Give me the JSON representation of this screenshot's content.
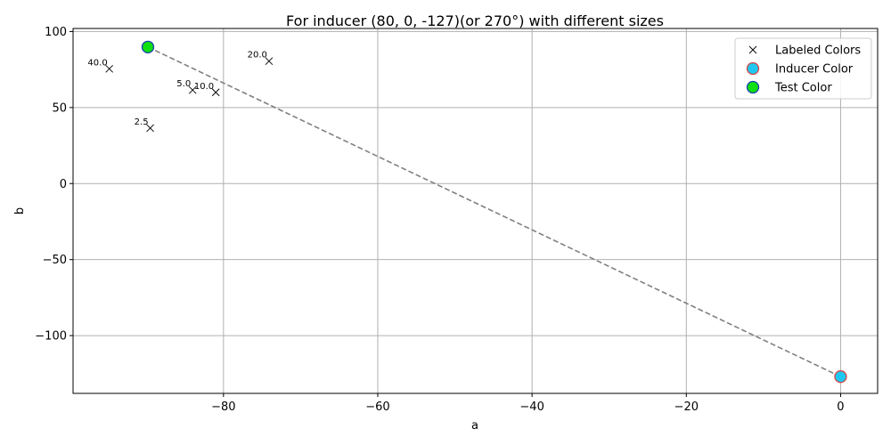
{
  "chart_data": {
    "type": "scatter",
    "title": "For inducer (80, 0, -127)(or 270°) with different sizes",
    "xlabel": "a",
    "ylabel": "b",
    "xlim": [
      -99.5,
      4.8
    ],
    "ylim": [
      -138,
      102
    ],
    "xticks": [
      -80,
      -60,
      -40,
      -20,
      0
    ],
    "yticks": [
      -100,
      -50,
      0,
      50,
      100
    ],
    "xtick_labels": [
      "−80",
      "−60",
      "−40",
      "−20",
      "0"
    ],
    "ytick_labels": [
      "−100",
      "−50",
      "0",
      "50",
      "100"
    ],
    "grid": true,
    "legend_position": "top-right",
    "series": [
      {
        "name": "Labeled Colors",
        "marker": "x",
        "color": "#000000",
        "points": [
          {
            "x": -94.8,
            "y": 75.5,
            "label": "40.0"
          },
          {
            "x": -74.1,
            "y": 80.5,
            "label": "20.0"
          },
          {
            "x": -84.0,
            "y": 61.5,
            "label": "5.0"
          },
          {
            "x": -81.0,
            "y": 60.0,
            "label": "10.0"
          },
          {
            "x": -89.5,
            "y": 36.5,
            "label": "2.5"
          }
        ]
      },
      {
        "name": "Inducer Color",
        "marker": "circle",
        "color": "#1fc8f0",
        "edge_color": "#d64545",
        "points": [
          {
            "x": 0.0,
            "y": -127.0
          }
        ]
      },
      {
        "name": "Test Color",
        "marker": "circle",
        "color": "#10e010",
        "edge_color": "#1a3fb0",
        "points": [
          {
            "x": -89.8,
            "y": 89.8
          }
        ]
      }
    ],
    "connector": {
      "style": "dashed",
      "color": "#808080",
      "from": {
        "x": -89.8,
        "y": 89.8
      },
      "to": {
        "x": 0.0,
        "y": -127.0
      }
    }
  }
}
